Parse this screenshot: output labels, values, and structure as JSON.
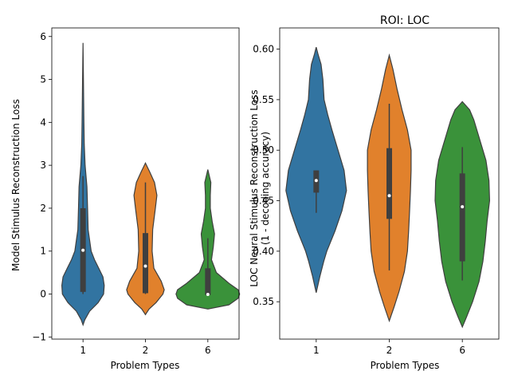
{
  "chart_data": [
    {
      "type": "violin",
      "title": "",
      "xlabel": "Problem Types",
      "ylabel": "Model Stimulus Reconstruction Loss",
      "categories": [
        "1",
        "2",
        "6"
      ],
      "ylim": [
        -1.05,
        6.2
      ],
      "yticks": [
        "−1",
        "0",
        "1",
        "2",
        "3",
        "4",
        "5",
        "6"
      ],
      "ytick_values": [
        -1,
        0,
        1,
        2,
        3,
        4,
        5,
        6
      ],
      "grid": false,
      "violins": [
        {
          "category": "1",
          "color": "#3274a1",
          "profile": [
            [
              -0.72,
              0.0
            ],
            [
              -0.6,
              0.06
            ],
            [
              -0.4,
              0.22
            ],
            [
              -0.2,
              0.5
            ],
            [
              0.0,
              0.68
            ],
            [
              0.2,
              0.7
            ],
            [
              0.4,
              0.66
            ],
            [
              0.6,
              0.52
            ],
            [
              0.8,
              0.38
            ],
            [
              1.0,
              0.27
            ],
            [
              1.5,
              0.17
            ],
            [
              2.0,
              0.15
            ],
            [
              2.5,
              0.13
            ],
            [
              3.0,
              0.07
            ],
            [
              3.5,
              0.04
            ],
            [
              4.0,
              0.03
            ],
            [
              5.0,
              0.015
            ],
            [
              5.85,
              0.0
            ]
          ],
          "box": [
            0.05,
            2.0
          ],
          "whisker": [
            0.0,
            2.75
          ],
          "median": 1.02
        },
        {
          "category": "2",
          "color": "#e1812c",
          "profile": [
            [
              -0.48,
              0.0
            ],
            [
              -0.35,
              0.12
            ],
            [
              -0.2,
              0.35
            ],
            [
              0.0,
              0.58
            ],
            [
              0.1,
              0.62
            ],
            [
              0.3,
              0.52
            ],
            [
              0.6,
              0.28
            ],
            [
              1.0,
              0.22
            ],
            [
              1.5,
              0.24
            ],
            [
              2.0,
              0.33
            ],
            [
              2.3,
              0.38
            ],
            [
              2.6,
              0.3
            ],
            [
              2.85,
              0.14
            ],
            [
              3.05,
              0.0
            ]
          ],
          "box": [
            0.02,
            1.42
          ],
          "whisker": [
            0.0,
            2.6
          ],
          "median": 0.65
        },
        {
          "category": "6",
          "color": "#3a923a",
          "profile": [
            [
              -0.35,
              0.0
            ],
            [
              -0.25,
              0.7
            ],
            [
              -0.1,
              1.0
            ],
            [
              0.0,
              1.05
            ],
            [
              0.1,
              1.0
            ],
            [
              0.25,
              0.7
            ],
            [
              0.5,
              0.28
            ],
            [
              0.8,
              0.12
            ],
            [
              1.1,
              0.18
            ],
            [
              1.4,
              0.22
            ],
            [
              1.7,
              0.14
            ],
            [
              2.0,
              0.08
            ],
            [
              2.3,
              0.08
            ],
            [
              2.6,
              0.1
            ],
            [
              2.9,
              0.0
            ]
          ],
          "box": [
            -0.02,
            0.6
          ],
          "whisker": [
            -0.02,
            1.3
          ],
          "median": -0.01
        }
      ]
    },
    {
      "type": "violin",
      "title": "ROI: LOC",
      "xlabel": "Problem Types",
      "ylabel": [
        "LOC Neural Stimulus Reconstruction Loss",
        "(1 - decoding accuracy)"
      ],
      "categories": [
        "1",
        "2",
        "6"
      ],
      "ylim": [
        0.313,
        0.621
      ],
      "yticks": [
        "0.35",
        "0.40",
        "0.45",
        "0.50",
        "0.55",
        "0.60"
      ],
      "ytick_values": [
        0.35,
        0.4,
        0.45,
        0.5,
        0.55,
        0.6
      ],
      "grid": false,
      "violins": [
        {
          "category": "1",
          "color": "#3274a1",
          "profile": [
            [
              0.359,
              0.0
            ],
            [
              0.375,
              0.12
            ],
            [
              0.39,
              0.25
            ],
            [
              0.4,
              0.35
            ],
            [
              0.42,
              0.62
            ],
            [
              0.44,
              0.85
            ],
            [
              0.46,
              1.0
            ],
            [
              0.48,
              0.92
            ],
            [
              0.5,
              0.72
            ],
            [
              0.52,
              0.52
            ],
            [
              0.535,
              0.38
            ],
            [
              0.55,
              0.26
            ],
            [
              0.57,
              0.22
            ],
            [
              0.585,
              0.16
            ],
            [
              0.595,
              0.06
            ],
            [
              0.602,
              0.0
            ]
          ],
          "box": [
            0.458,
            0.48
          ],
          "whisker": [
            0.438,
            0.48
          ],
          "median": 0.47
        },
        {
          "category": "2",
          "color": "#e1812c",
          "profile": [
            [
              0.331,
              0.0
            ],
            [
              0.345,
              0.16
            ],
            [
              0.36,
              0.32
            ],
            [
              0.38,
              0.5
            ],
            [
              0.4,
              0.6
            ],
            [
              0.42,
              0.64
            ],
            [
              0.44,
              0.67
            ],
            [
              0.46,
              0.7
            ],
            [
              0.48,
              0.72
            ],
            [
              0.5,
              0.72
            ],
            [
              0.52,
              0.6
            ],
            [
              0.54,
              0.42
            ],
            [
              0.56,
              0.26
            ],
            [
              0.58,
              0.12
            ],
            [
              0.594,
              0.0
            ]
          ],
          "box": [
            0.432,
            0.502
          ],
          "whisker": [
            0.381,
            0.546
          ],
          "median": 0.455
        },
        {
          "category": "6",
          "color": "#3a923a",
          "profile": [
            [
              0.325,
              0.0
            ],
            [
              0.335,
              0.14
            ],
            [
              0.35,
              0.34
            ],
            [
              0.37,
              0.55
            ],
            [
              0.39,
              0.68
            ],
            [
              0.41,
              0.76
            ],
            [
              0.43,
              0.82
            ],
            [
              0.45,
              0.9
            ],
            [
              0.47,
              0.88
            ],
            [
              0.49,
              0.78
            ],
            [
              0.51,
              0.58
            ],
            [
              0.53,
              0.38
            ],
            [
              0.54,
              0.24
            ],
            [
              0.548,
              0.0
            ]
          ],
          "box": [
            0.39,
            0.477
          ],
          "whisker": [
            0.371,
            0.503
          ],
          "median": 0.444
        }
      ]
    }
  ]
}
